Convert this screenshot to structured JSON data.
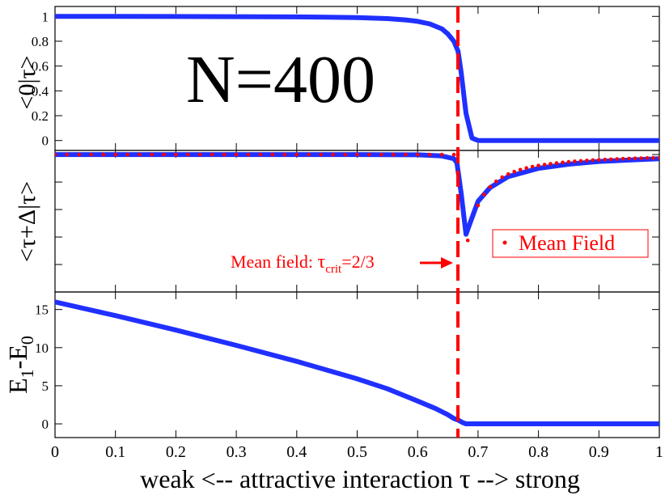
{
  "chart_data": {
    "type": "line",
    "shared_x": {
      "xlim": [
        0,
        1
      ],
      "ticks": [
        0,
        0.1,
        0.2,
        0.3,
        0.4,
        0.5,
        0.6,
        0.7,
        0.8,
        0.9,
        1
      ],
      "tick_labels": [
        "0",
        "0.1",
        "0.2",
        "0.3",
        "0.4",
        "0.5",
        "0.6",
        "0.7",
        "0.8",
        "0.9",
        "1"
      ],
      "xlabel": {
        "before": "weak <-- attractive interaction ",
        "symbol": "τ",
        "after": "  --> strong"
      }
    },
    "annotation_text": "N=400",
    "critical_x": 0.6667,
    "critical_label": {
      "prefix": "Mean field: ",
      "symbol": "τ",
      "subscript": "crit",
      "suffix": "=2/3"
    },
    "panels": [
      {
        "id": "overlap-ground",
        "ylabel": "<0|τ>",
        "ylim": [
          -0.08,
          1.08
        ],
        "yticks": [
          0,
          0.2,
          0.4,
          0.6,
          0.8,
          1
        ],
        "ytick_labels": [
          "0",
          "0.2",
          "0.4",
          "0.6",
          "0.8",
          "1"
        ],
        "series": [
          {
            "name": "N=400",
            "style": "line",
            "color": "#2030ff",
            "x": [
              0,
              0.1,
              0.2,
              0.3,
              0.4,
              0.45,
              0.5,
              0.55,
              0.58,
              0.6,
              0.62,
              0.64,
              0.65,
              0.66,
              0.667,
              0.672,
              0.68,
              0.69,
              0.7,
              0.75,
              0.8,
              0.9,
              1.0
            ],
            "y": [
              1.0,
              1.0,
              0.999,
              0.998,
              0.996,
              0.994,
              0.99,
              0.982,
              0.972,
              0.96,
              0.94,
              0.9,
              0.86,
              0.8,
              0.72,
              0.55,
              0.22,
              0.02,
              0.0,
              0.0,
              0.0,
              0.0,
              0.0
            ]
          }
        ]
      },
      {
        "id": "overlap-shift",
        "ylabel": "<τ+Δ|τ>",
        "ylim": [
          -1.0,
          0.03
        ],
        "yticks": [
          0,
          -0.2,
          -0.4,
          -0.6,
          -0.8
        ],
        "ytick_labels": [],
        "series": [
          {
            "name": "N=400",
            "style": "line",
            "color": "#2030ff",
            "x": [
              0,
              0.2,
              0.4,
              0.5,
              0.6,
              0.64,
              0.66,
              0.665,
              0.672,
              0.68,
              0.69,
              0.7,
              0.72,
              0.75,
              0.8,
              0.85,
              0.9,
              0.95,
              1.0
            ],
            "y": [
              0,
              0,
              0,
              0,
              -0.002,
              -0.01,
              -0.03,
              -0.06,
              -0.28,
              -0.58,
              -0.46,
              -0.34,
              -0.24,
              -0.16,
              -0.1,
              -0.07,
              -0.05,
              -0.04,
              -0.03
            ]
          },
          {
            "name": "Mean Field",
            "style": "dots",
            "color": "#ff0000",
            "x": [
              0,
              0.02,
              0.04,
              0.06,
              0.08,
              0.1,
              0.12,
              0.14,
              0.16,
              0.18,
              0.2,
              0.22,
              0.24,
              0.26,
              0.28,
              0.3,
              0.32,
              0.34,
              0.36,
              0.38,
              0.4,
              0.42,
              0.44,
              0.46,
              0.48,
              0.5,
              0.52,
              0.54,
              0.56,
              0.58,
              0.6,
              0.62,
              0.64,
              0.66,
              0.6667,
              0.683,
              0.7,
              0.71,
              0.72,
              0.73,
              0.74,
              0.75,
              0.76,
              0.77,
              0.78,
              0.79,
              0.8,
              0.81,
              0.82,
              0.83,
              0.84,
              0.85,
              0.86,
              0.87,
              0.88,
              0.89,
              0.9,
              0.91,
              0.92,
              0.93,
              0.94,
              0.95,
              0.96,
              0.97,
              0.98,
              0.99,
              1.0
            ],
            "y": [
              0,
              0,
              0,
              0,
              0,
              0,
              0,
              0,
              0,
              0,
              0,
              0,
              0,
              0,
              0,
              0,
              0,
              0,
              0,
              0,
              0,
              0,
              0,
              0,
              0,
              0,
              0,
              0,
              0,
              0,
              0,
              0,
              0,
              0,
              0,
              -0.625,
              -0.37,
              -0.29,
              -0.235,
              -0.195,
              -0.165,
              -0.142,
              -0.124,
              -0.11,
              -0.098,
              -0.088,
              -0.08,
              -0.073,
              -0.067,
              -0.062,
              -0.057,
              -0.053,
              -0.049,
              -0.046,
              -0.043,
              -0.04,
              -0.038,
              -0.036,
              -0.034,
              -0.032,
              -0.03,
              -0.029,
              -0.027,
              -0.026,
              -0.025,
              -0.024,
              -0.023
            ]
          }
        ],
        "legend": {
          "label": "Mean Field",
          "position": "right"
        }
      },
      {
        "id": "energy-gap",
        "ylabel_main": "E",
        "ylabel_sub1": "1",
        "ylabel_mid": "-E",
        "ylabel_sub2": "0",
        "ylim": [
          -1.8,
          17.3
        ],
        "yticks": [
          0,
          5,
          10,
          15
        ],
        "ytick_labels": [
          "0",
          "5",
          "10",
          "15"
        ],
        "series": [
          {
            "name": "N=400",
            "style": "line",
            "color": "#2030ff",
            "x": [
              0,
              0.1,
              0.2,
              0.3,
              0.4,
              0.5,
              0.55,
              0.6,
              0.63,
              0.65,
              0.66,
              0.667,
              0.675,
              0.68,
              0.7,
              0.8,
              0.9,
              1.0
            ],
            "y": [
              16.0,
              14.2,
              12.3,
              10.3,
              8.2,
              5.9,
              4.6,
              3.0,
              2.0,
              1.2,
              0.7,
              0.5,
              0.15,
              0.0,
              0.0,
              0.0,
              0.0,
              0.0
            ]
          }
        ]
      }
    ]
  }
}
